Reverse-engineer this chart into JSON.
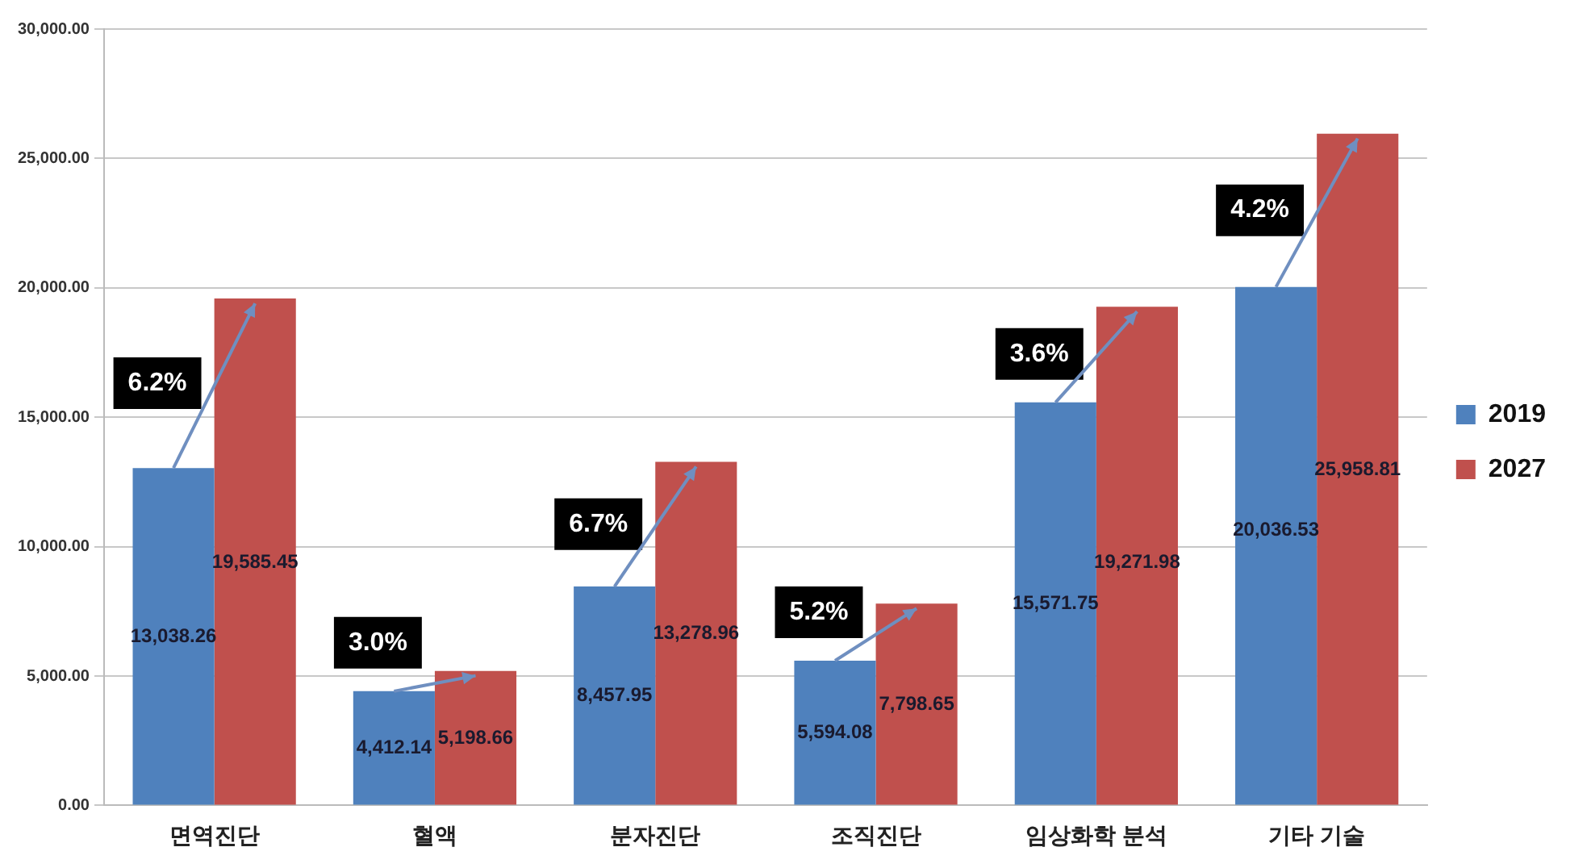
{
  "chart_data": {
    "type": "bar",
    "categories": [
      "면역진단",
      "혈액",
      "분자진단",
      "조직진단",
      "임상화학 분석",
      "기타 기술"
    ],
    "series": [
      {
        "name": "2019",
        "color": "#4f81bd",
        "values": [
          13038.26,
          4412.14,
          8457.95,
          5594.08,
          15571.75,
          20036.53
        ],
        "value_labels": [
          "13,038.26",
          "4,412.14",
          "8,457.95",
          "5,594.08",
          "15,571.75",
          "20,036.53"
        ]
      },
      {
        "name": "2027",
        "color": "#c0504d",
        "values": [
          19585.45,
          5198.66,
          13278.96,
          7798.65,
          19271.98,
          25958.81
        ],
        "value_labels": [
          "19,585.45",
          "5,198.66",
          "13,278.96",
          "7,798.65",
          "19,271.98",
          "25,958.81"
        ]
      }
    ],
    "ylim": [
      0,
      30000
    ],
    "yticks": [
      {
        "value": 0,
        "label": "0.00"
      },
      {
        "value": 5000,
        "label": "5,000.00"
      },
      {
        "value": 10000,
        "label": "10,000.00"
      },
      {
        "value": 15000,
        "label": "15,000.00"
      },
      {
        "value": 20000,
        "label": "20,000.00"
      },
      {
        "value": 25000,
        "label": "25,000.00"
      },
      {
        "value": 30000,
        "label": "30,000.00"
      }
    ],
    "grid": "y",
    "legend": "right",
    "annotations": [
      "6.2%",
      "3.0%",
      "6.7%",
      "5.2%",
      "3.6%",
      "4.2%"
    ]
  }
}
